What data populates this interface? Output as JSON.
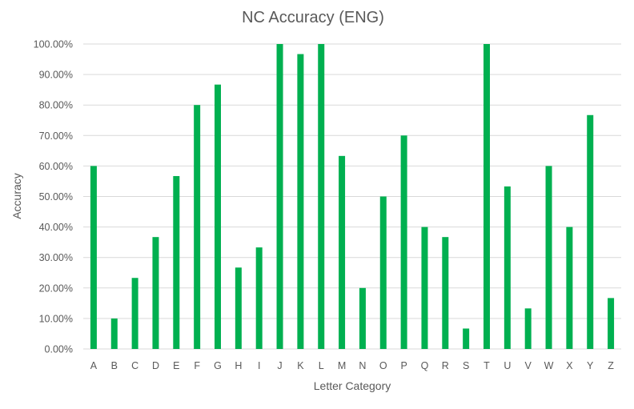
{
  "chart_data": {
    "type": "bar",
    "title": "NC Accuracy (ENG)",
    "xlabel": "Letter Category",
    "ylabel": "Accuracy",
    "ylim": [
      0,
      1
    ],
    "yticks": [
      "0.00%",
      "10.00%",
      "20.00%",
      "30.00%",
      "40.00%",
      "50.00%",
      "60.00%",
      "70.00%",
      "80.00%",
      "90.00%",
      "100.00%"
    ],
    "categories": [
      "A",
      "B",
      "C",
      "D",
      "E",
      "F",
      "G",
      "H",
      "I",
      "J",
      "K",
      "L",
      "M",
      "N",
      "O",
      "P",
      "Q",
      "R",
      "S",
      "T",
      "U",
      "V",
      "W",
      "X",
      "Y",
      "Z"
    ],
    "values": [
      0.6,
      0.1,
      0.233,
      0.367,
      0.567,
      0.8,
      0.867,
      0.267,
      0.333,
      1.0,
      0.967,
      1.0,
      0.633,
      0.2,
      0.5,
      0.7,
      0.4,
      0.367,
      0.067,
      1.0,
      0.533,
      0.133,
      0.6,
      0.4,
      0.767,
      0.167
    ],
    "bar_color": "#00b050",
    "grid": true,
    "legend": "none"
  }
}
